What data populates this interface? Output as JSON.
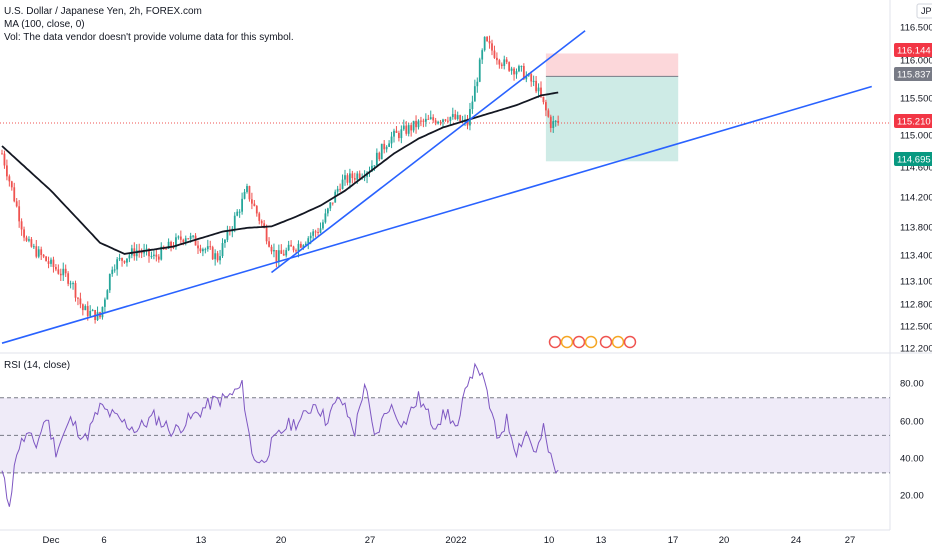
{
  "header": {
    "symbol_line": "U.S. Dollar / Japanese Yen, 2h, FOREX.com",
    "ma_label": "MA (100, close, 0)",
    "vol_label": "Vol: The data vendor doesn't provide volume data for this symbol.",
    "currency_badge": "JPY"
  },
  "rsi_panel": {
    "label": "RSI (14, close)"
  },
  "colors": {
    "up": "#26a69a",
    "down": "#ef5350",
    "ma": "#131722",
    "trendline": "#2962ff",
    "rsi_line": "#7e57c2",
    "rsi_band": "rgba(126,87,194,0.12)",
    "stop_zone": "rgba(242,54,69,0.2)",
    "target_zone": "rgba(8,153,129,0.2)"
  },
  "price_badges": [
    {
      "value": "116.144",
      "color": "#f23645"
    },
    {
      "value": "115.837",
      "color": "#787b86"
    },
    {
      "value": "115.210",
      "color": "#f23645"
    },
    {
      "value": "114.695",
      "color": "#089981"
    }
  ],
  "chart_data": [
    {
      "type": "candlestick",
      "title": "U.S. Dollar / Japanese Yen, 2h, FOREX.com",
      "x_tick_labels": [
        "Dec",
        "6",
        "13",
        "20",
        "27",
        "2022",
        "10",
        "13",
        "17",
        "20",
        "24",
        "27"
      ],
      "y_tick_labels": [
        "116.500",
        "116.000",
        "115.500",
        "115.000",
        "114.600",
        "114.200",
        "113.800",
        "113.400",
        "113.100",
        "112.800",
        "112.500",
        "112.200"
      ],
      "ylim": [
        112.2,
        116.5
      ],
      "price_path_anchors": [
        [
          0,
          114.8
        ],
        [
          10,
          113.6
        ],
        [
          20,
          113.3
        ],
        [
          28,
          113.1
        ],
        [
          33,
          112.7
        ],
        [
          40,
          112.6
        ],
        [
          45,
          113.3
        ],
        [
          55,
          113.5
        ],
        [
          62,
          113.4
        ],
        [
          75,
          113.7
        ],
        [
          88,
          113.4
        ],
        [
          100,
          114.3
        ],
        [
          112,
          113.4
        ],
        [
          122,
          113.6
        ],
        [
          130,
          113.8
        ],
        [
          138,
          114.4
        ],
        [
          150,
          114.6
        ],
        [
          158,
          115.0
        ],
        [
          170,
          115.2
        ],
        [
          182,
          115.3
        ],
        [
          190,
          115.2
        ],
        [
          197,
          116.3
        ],
        [
          205,
          116.0
        ],
        [
          212,
          115.9
        ],
        [
          218,
          115.7
        ],
        [
          224,
          115.2
        ],
        [
          227,
          115.21
        ]
      ],
      "moving_average": {
        "name": "MA (100, close, 0)",
        "anchors": [
          [
            0,
            114.9
          ],
          [
            10,
            114.6
          ],
          [
            20,
            114.3
          ],
          [
            30,
            113.95
          ],
          [
            40,
            113.6
          ],
          [
            50,
            113.45
          ],
          [
            60,
            113.5
          ],
          [
            70,
            113.55
          ],
          [
            80,
            113.65
          ],
          [
            90,
            113.75
          ],
          [
            100,
            113.8
          ],
          [
            110,
            113.82
          ],
          [
            120,
            113.95
          ],
          [
            130,
            114.1
          ],
          [
            140,
            114.3
          ],
          [
            150,
            114.55
          ],
          [
            160,
            114.8
          ],
          [
            170,
            115.0
          ],
          [
            180,
            115.15
          ],
          [
            190,
            115.25
          ],
          [
            200,
            115.35
          ],
          [
            210,
            115.45
          ],
          [
            220,
            115.58
          ],
          [
            227,
            115.62
          ]
        ]
      },
      "trendlines": [
        {
          "from": [
            0,
            112.25
          ],
          "to": [
            355,
            115.7
          ]
        },
        {
          "from": [
            110,
            113.2
          ],
          "to": [
            238,
            116.45
          ]
        }
      ],
      "position_zones": {
        "entry": 115.837,
        "stop": 116.144,
        "target": 114.695,
        "x_start": 222,
        "x_end": 276
      },
      "last_price": 115.21
    },
    {
      "type": "line",
      "title": "RSI (14, close)",
      "y_tick_labels": [
        "80.00",
        "60.00",
        "40.00",
        "20.00"
      ],
      "ylim": [
        12,
        88
      ],
      "band": [
        30,
        70
      ],
      "midline": 50,
      "rsi_anchors": [
        [
          0,
          30
        ],
        [
          3,
          12
        ],
        [
          6,
          42
        ],
        [
          10,
          50
        ],
        [
          14,
          45
        ],
        [
          18,
          60
        ],
        [
          22,
          42
        ],
        [
          28,
          58
        ],
        [
          34,
          48
        ],
        [
          40,
          65
        ],
        [
          48,
          58
        ],
        [
          55,
          53
        ],
        [
          62,
          60
        ],
        [
          70,
          52
        ],
        [
          78,
          60
        ],
        [
          86,
          68
        ],
        [
          92,
          70
        ],
        [
          98,
          76
        ],
        [
          102,
          40
        ],
        [
          106,
          35
        ],
        [
          110,
          45
        ],
        [
          116,
          55
        ],
        [
          122,
          58
        ],
        [
          128,
          68
        ],
        [
          132,
          58
        ],
        [
          138,
          70
        ],
        [
          144,
          52
        ],
        [
          148,
          78
        ],
        [
          152,
          48
        ],
        [
          158,
          66
        ],
        [
          164,
          56
        ],
        [
          170,
          70
        ],
        [
          176,
          56
        ],
        [
          182,
          62
        ],
        [
          186,
          52
        ],
        [
          190,
          80
        ],
        [
          194,
          88
        ],
        [
          198,
          72
        ],
        [
          202,
          48
        ],
        [
          206,
          58
        ],
        [
          210,
          42
        ],
        [
          214,
          52
        ],
        [
          218,
          40
        ],
        [
          221,
          53
        ],
        [
          223,
          42
        ],
        [
          226,
          30
        ],
        [
          227,
          30
        ]
      ]
    }
  ]
}
